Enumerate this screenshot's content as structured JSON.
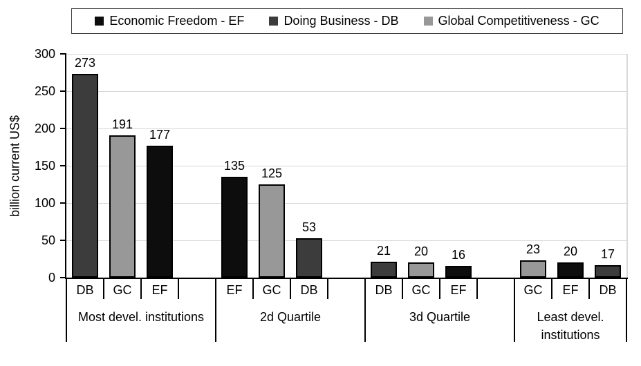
{
  "chart_data": {
    "type": "bar",
    "title": "",
    "ylabel": "billion current US$",
    "ylim": [
      0,
      300
    ],
    "yticks": [
      0,
      50,
      100,
      150,
      200,
      250,
      300
    ],
    "grid": true,
    "legend_position": "top",
    "legend": [
      {
        "series": "EF",
        "label": "Economic Freedom - EF",
        "color": "#0d0d0d"
      },
      {
        "series": "DB",
        "label": "Doing Business - DB",
        "color": "#3c3c3c"
      },
      {
        "series": "GC",
        "label": "Global Competitiveness - GC",
        "color": "#989898"
      }
    ],
    "series_colors": {
      "EF": "#0d0d0d",
      "DB": "#3c3c3c",
      "GC": "#989898"
    },
    "colors": {
      "gridline": "#d9d9d9",
      "axis": "#000000"
    },
    "groups": [
      {
        "label": "Most devel. institutions",
        "trailing_empty_cell": true,
        "bars": [
          {
            "series": "DB",
            "value": 273
          },
          {
            "series": "GC",
            "value": 191
          },
          {
            "series": "EF",
            "value": 177
          }
        ]
      },
      {
        "label": "2d Quartile",
        "trailing_empty_cell": true,
        "bars": [
          {
            "series": "EF",
            "value": 135
          },
          {
            "series": "GC",
            "value": 125
          },
          {
            "series": "DB",
            "value": 53
          }
        ]
      },
      {
        "label": "3d Quartile",
        "trailing_empty_cell": true,
        "bars": [
          {
            "series": "DB",
            "value": 21
          },
          {
            "series": "GC",
            "value": 20
          },
          {
            "series": "EF",
            "value": 16
          }
        ]
      },
      {
        "label": "Least devel. institutions",
        "trailing_empty_cell": false,
        "bars": [
          {
            "series": "GC",
            "value": 23
          },
          {
            "series": "EF",
            "value": 20
          },
          {
            "series": "DB",
            "value": 17
          }
        ]
      }
    ]
  }
}
